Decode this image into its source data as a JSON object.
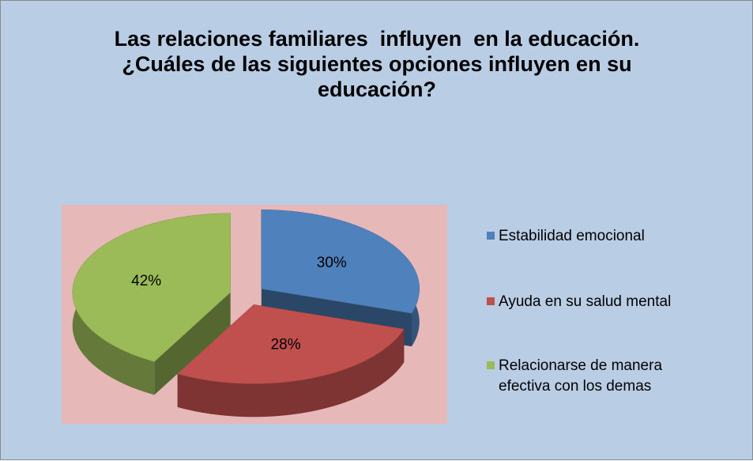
{
  "chart_data": {
    "type": "pie",
    "title": "Las relaciones familiares  influyen  en la educación. ¿Cuáles de las siguientes opciones influyen en su educación?",
    "categories": [
      "Estabilidad emocional",
      "Ayuda en su salud mental",
      "Relacionarse de manera efectiva con los demas"
    ],
    "values": [
      30,
      28,
      42
    ],
    "value_labels": [
      "30%",
      "28%",
      "42%"
    ],
    "colors": [
      "#4f81bd",
      "#c0504d",
      "#9bbb59"
    ],
    "legend": "right"
  }
}
